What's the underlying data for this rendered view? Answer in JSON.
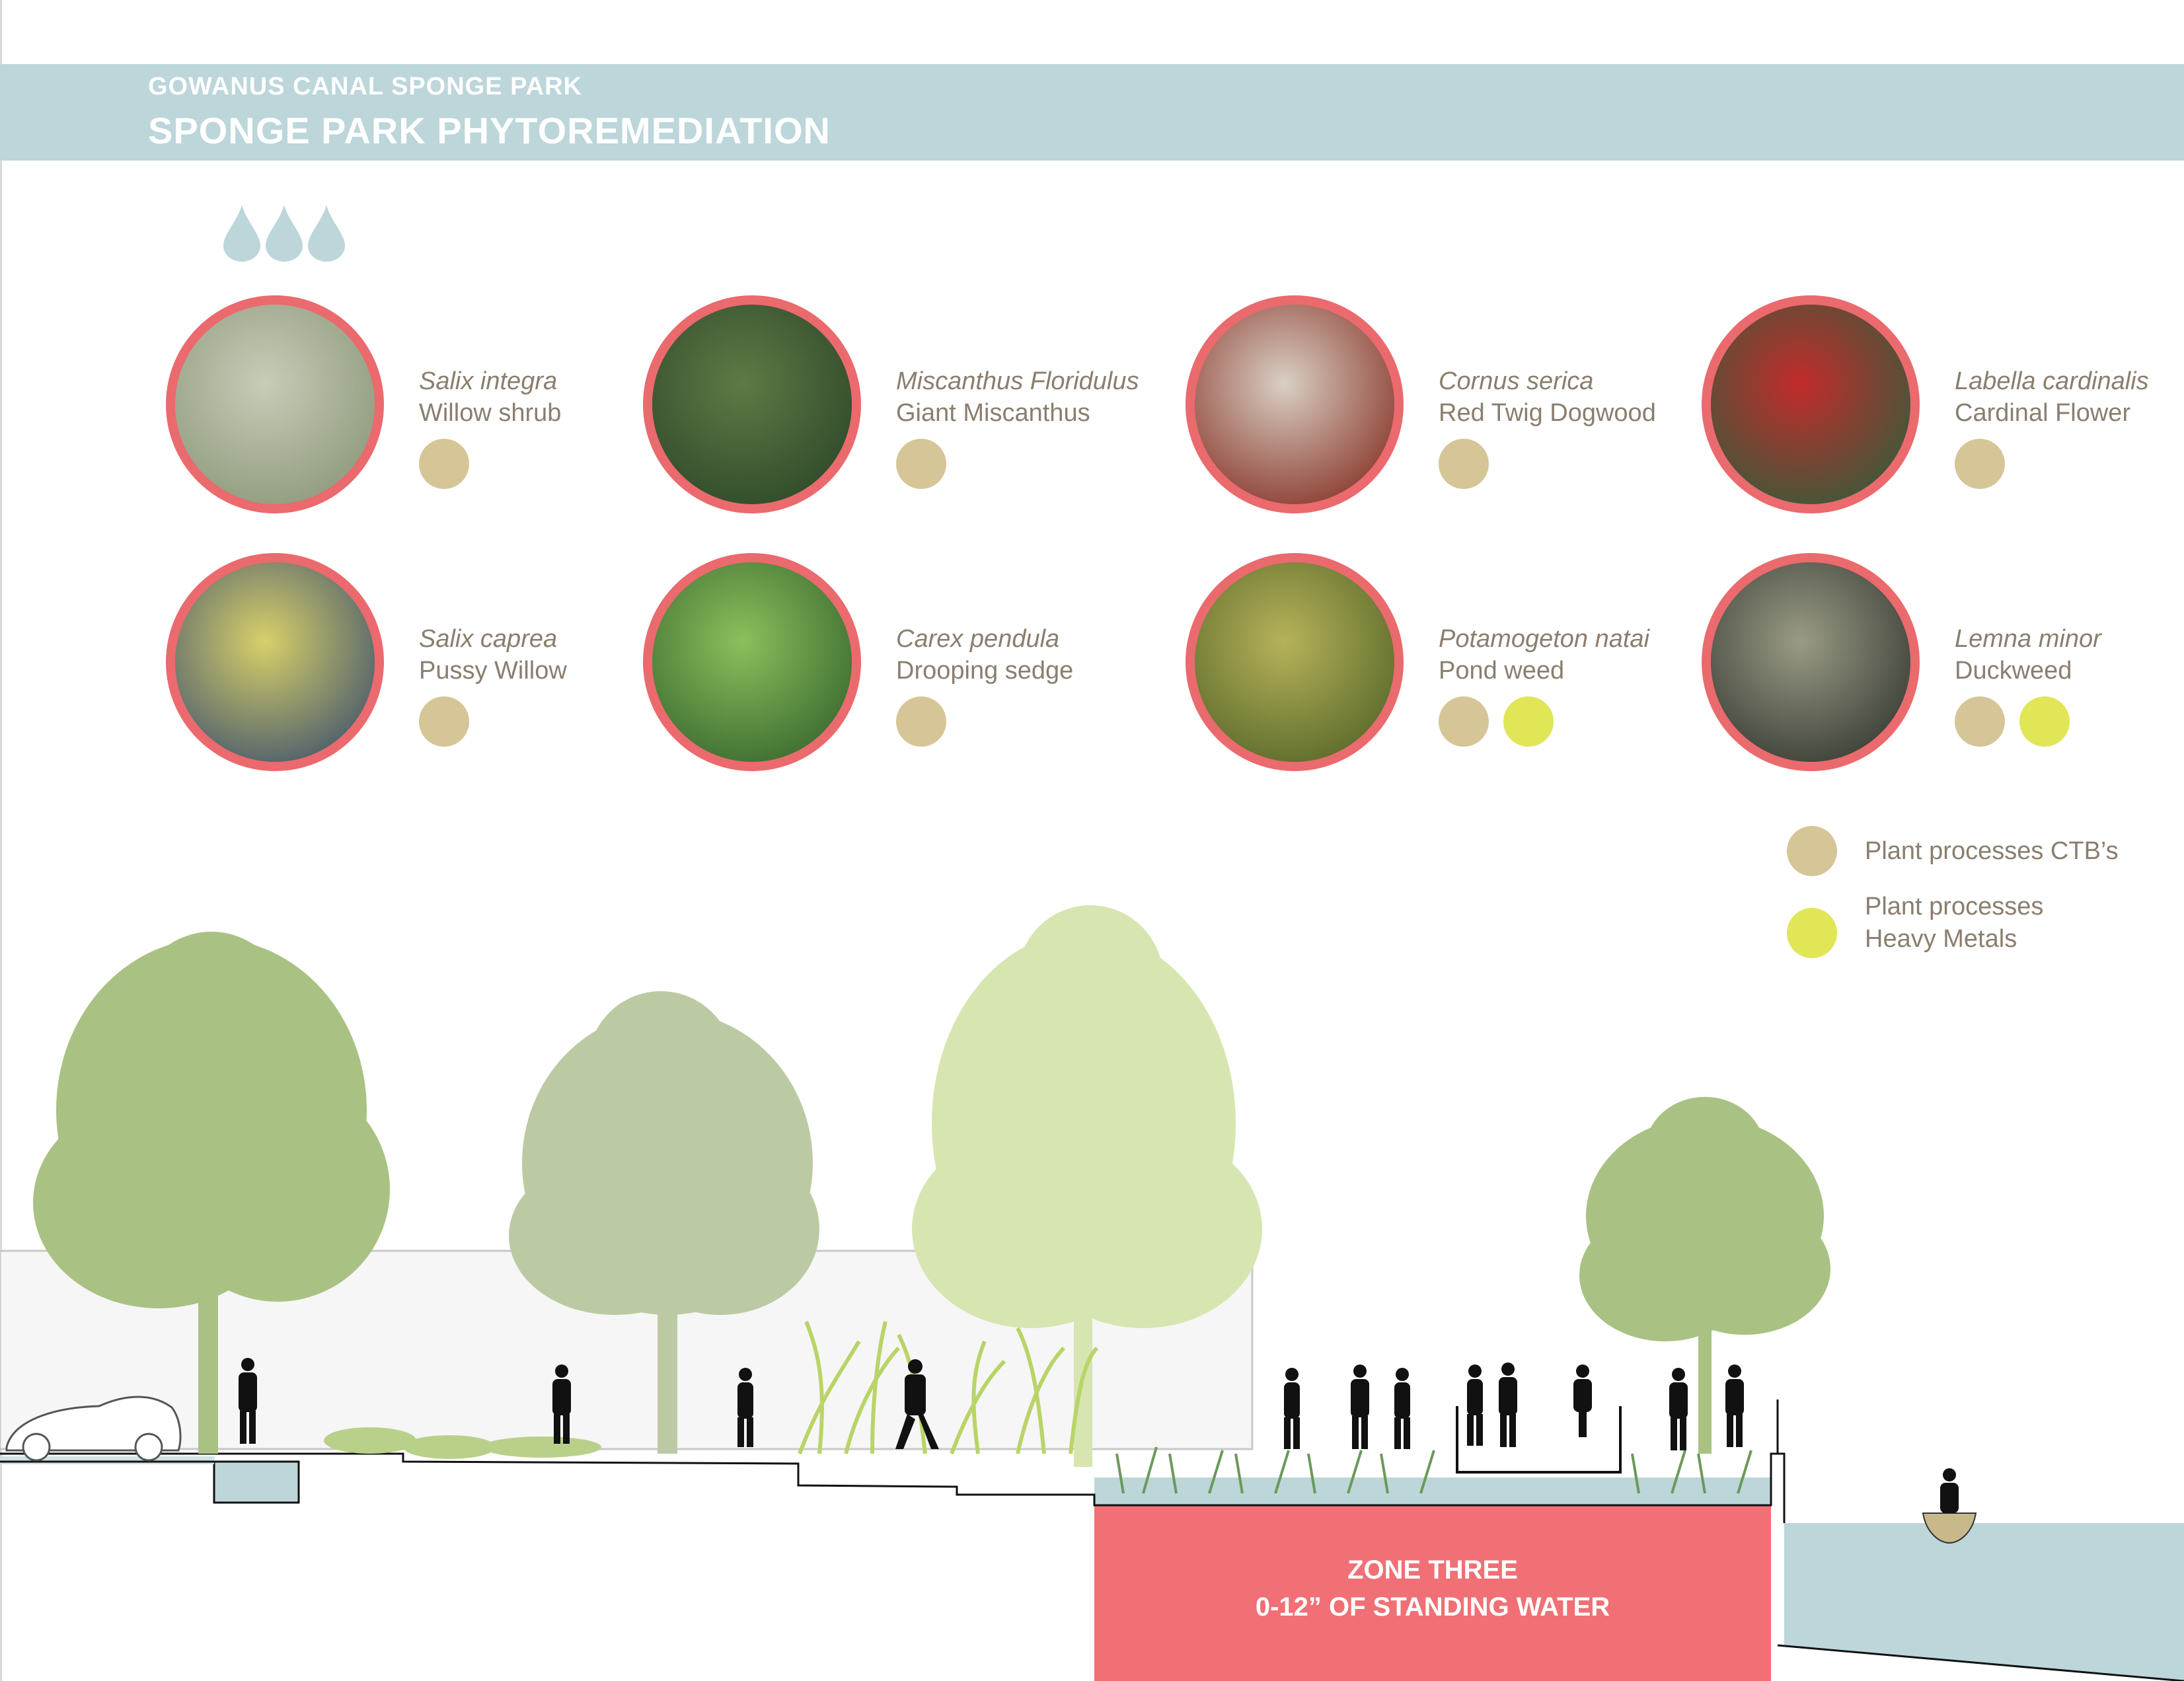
{
  "header": {
    "subtitle": "GOWANUS CANAL SPONGE PARK",
    "title": "SPONGE PARK PHYTOREMEDIATION"
  },
  "plants": [
    {
      "latin": "Salix integra",
      "common": "Willow shrub",
      "processes": [
        "ctb"
      ]
    },
    {
      "latin": "Miscanthus Floridulus",
      "common": "Giant Miscanthus",
      "processes": [
        "ctb"
      ]
    },
    {
      "latin": "Cornus serica",
      "common": "Red Twig Dogwood",
      "processes": [
        "ctb"
      ]
    },
    {
      "latin": "Labella cardinalis",
      "common": "Cardinal Flower",
      "processes": [
        "ctb"
      ]
    },
    {
      "latin": "Salix caprea",
      "common": "Pussy Willow",
      "processes": [
        "ctb"
      ]
    },
    {
      "latin": "Carex pendula",
      "common": "Drooping sedge",
      "processes": [
        "ctb"
      ]
    },
    {
      "latin": "Potamogeton natai",
      "common": "Pond weed",
      "processes": [
        "ctb",
        "metals"
      ]
    },
    {
      "latin": "Lemna minor",
      "common": "Duckweed",
      "processes": [
        "ctb",
        "metals"
      ]
    }
  ],
  "legend": {
    "ctb_label": "Plant processes CTB’s",
    "metals_label_line1": "Plant processes",
    "metals_label_line2": "Heavy Metals"
  },
  "zone": {
    "line1": "ZONE THREE",
    "line2": "0-12” OF STANDING WATER"
  },
  "colors": {
    "header_band": "#bcd6da",
    "ring": "#ea6a6e",
    "ctb_dot": "#d6c596",
    "metals_dot": "#e0e656",
    "zone_fill": "#f07075",
    "water": "#bcd6da",
    "text": "#8a7e6e"
  }
}
